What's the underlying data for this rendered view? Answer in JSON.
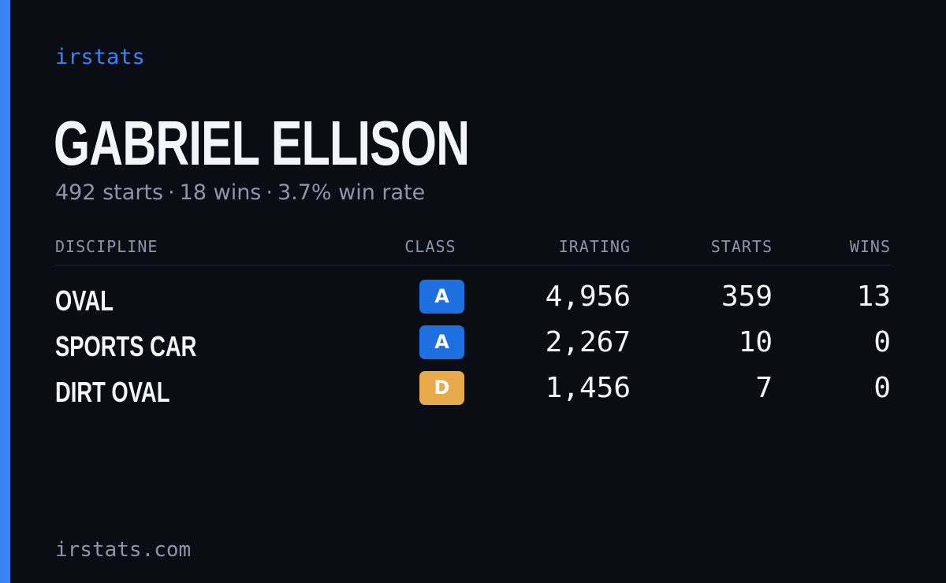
{
  "brand": "irstats",
  "driver": {
    "name": "GABRIEL ELLISON",
    "starts_text": "492 starts",
    "wins_text": "18 wins",
    "win_rate_text": "3.7% win rate",
    "separator": "·"
  },
  "table": {
    "headers": {
      "discipline": "DISCIPLINE",
      "class": "CLASS",
      "irating": "IRATING",
      "starts": "STARTS",
      "wins": "WINS"
    },
    "rows": [
      {
        "discipline": "OVAL",
        "class": "A",
        "class_color": "#1e6fe0",
        "irating": "4,956",
        "starts": "359",
        "wins": "13"
      },
      {
        "discipline": "SPORTS CAR",
        "class": "A",
        "class_color": "#1e6fe0",
        "irating": "2,267",
        "starts": "10",
        "wins": "0"
      },
      {
        "discipline": "DIRT OVAL",
        "class": "D",
        "class_color": "#e8a94a",
        "irating": "1,456",
        "starts": "7",
        "wins": "0"
      }
    ]
  },
  "footer": "irstats.com",
  "colors": {
    "accent": "#3b82f6",
    "background": "#0a0d14",
    "muted": "#8d96a8",
    "text": "#f4f5f8"
  }
}
